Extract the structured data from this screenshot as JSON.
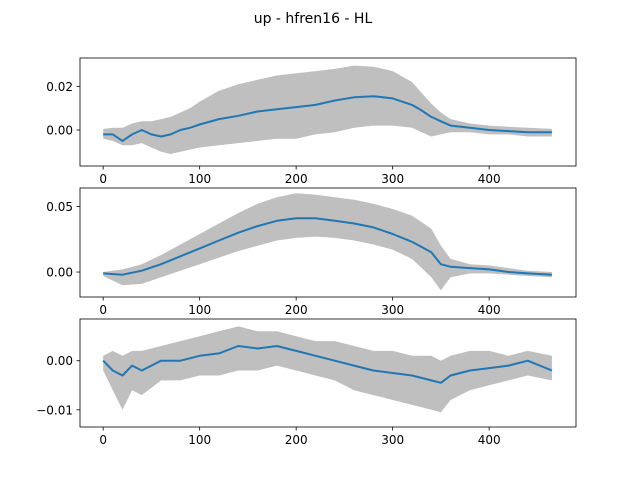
{
  "figure_title": "up - hfren16 - HL",
  "chart_data": [
    {
      "type": "line",
      "title": "",
      "xlabel": "",
      "ylabel": "",
      "xlim": [
        -24,
        490
      ],
      "ylim": [
        -0.0165,
        0.033
      ],
      "xticks": [
        0,
        100,
        200,
        300,
        400
      ],
      "xtick_labels": [
        "0",
        "100",
        "200",
        "300",
        "400"
      ],
      "yticks": [
        0.0,
        0.02
      ],
      "ytick_labels": [
        "0.00",
        "0.02"
      ],
      "grid": false,
      "series": [
        {
          "role": "mean line",
          "color": "#1f77b4",
          "x": [
            0,
            10,
            20,
            30,
            40,
            50,
            60,
            70,
            80,
            90,
            100,
            120,
            140,
            160,
            180,
            200,
            220,
            240,
            260,
            280,
            300,
            320,
            330,
            340,
            350,
            360,
            380,
            400,
            420,
            440,
            465
          ],
          "y": [
            -0.002,
            -0.002,
            -0.005,
            -0.002,
            0.0,
            -0.002,
            -0.003,
            -0.002,
            0.0,
            0.001,
            0.0025,
            0.005,
            0.0065,
            0.0085,
            0.0095,
            0.0105,
            0.0115,
            0.0135,
            0.015,
            0.0155,
            0.0145,
            0.0115,
            0.009,
            0.006,
            0.004,
            0.002,
            0.001,
            0.0,
            -0.0005,
            -0.001,
            -0.001
          ]
        },
        {
          "role": "uncertainty band",
          "color": "#bfbfbf",
          "x": [
            0,
            10,
            20,
            30,
            40,
            50,
            60,
            70,
            80,
            90,
            100,
            120,
            140,
            160,
            180,
            200,
            220,
            240,
            260,
            280,
            300,
            320,
            330,
            340,
            350,
            360,
            380,
            400,
            420,
            440,
            465
          ],
          "upper": [
            0.0005,
            0.001,
            0.001,
            0.003,
            0.004,
            0.004,
            0.005,
            0.006,
            0.008,
            0.01,
            0.013,
            0.018,
            0.021,
            0.023,
            0.025,
            0.026,
            0.027,
            0.028,
            0.0295,
            0.029,
            0.027,
            0.022,
            0.017,
            0.012,
            0.008,
            0.005,
            0.003,
            0.002,
            0.0015,
            0.001,
            0.0005
          ],
          "lower": [
            -0.004,
            -0.005,
            -0.007,
            -0.007,
            -0.006,
            -0.008,
            -0.01,
            -0.011,
            -0.01,
            -0.009,
            -0.008,
            -0.007,
            -0.006,
            -0.005,
            -0.004,
            -0.004,
            -0.002,
            -0.001,
            0.001,
            0.002,
            0.002,
            0.001,
            -0.001,
            -0.003,
            -0.002,
            -0.001,
            -0.001,
            -0.002,
            -0.002,
            -0.003,
            -0.003
          ]
        }
      ]
    },
    {
      "type": "line",
      "title": "",
      "xlabel": "",
      "ylabel": "",
      "xlim": [
        -24,
        490
      ],
      "ylim": [
        -0.019,
        0.064
      ],
      "xticks": [
        0,
        100,
        200,
        300,
        400
      ],
      "xtick_labels": [
        "0",
        "100",
        "200",
        "300",
        "400"
      ],
      "yticks": [
        0.0,
        0.05
      ],
      "ytick_labels": [
        "0.00",
        "0.05"
      ],
      "grid": false,
      "series": [
        {
          "role": "mean line",
          "color": "#1f77b4",
          "x": [
            0,
            20,
            40,
            60,
            80,
            100,
            120,
            140,
            160,
            180,
            200,
            220,
            240,
            260,
            280,
            300,
            320,
            340,
            350,
            360,
            380,
            400,
            420,
            440,
            465
          ],
          "y": [
            -0.001,
            -0.002,
            0.001,
            0.006,
            0.012,
            0.018,
            0.024,
            0.03,
            0.035,
            0.039,
            0.041,
            0.041,
            0.039,
            0.037,
            0.034,
            0.029,
            0.023,
            0.015,
            0.006,
            0.004,
            0.003,
            0.002,
            0.0,
            -0.001,
            -0.002
          ]
        },
        {
          "role": "uncertainty band",
          "color": "#bfbfbf",
          "x": [
            0,
            20,
            40,
            60,
            80,
            100,
            120,
            140,
            160,
            180,
            200,
            220,
            240,
            260,
            280,
            300,
            320,
            340,
            350,
            360,
            380,
            400,
            420,
            440,
            465
          ],
          "upper": [
            0.0,
            0.002,
            0.006,
            0.013,
            0.021,
            0.029,
            0.037,
            0.045,
            0.052,
            0.057,
            0.06,
            0.059,
            0.057,
            0.055,
            0.052,
            0.048,
            0.043,
            0.033,
            0.02,
            0.01,
            0.006,
            0.005,
            0.003,
            0.001,
            0.0
          ],
          "lower": [
            -0.003,
            -0.01,
            -0.009,
            -0.004,
            0.001,
            0.006,
            0.011,
            0.016,
            0.02,
            0.024,
            0.026,
            0.027,
            0.026,
            0.024,
            0.021,
            0.017,
            0.01,
            -0.004,
            -0.014,
            -0.004,
            -0.001,
            -0.001,
            -0.002,
            -0.003,
            -0.004
          ]
        }
      ]
    },
    {
      "type": "line",
      "title": "",
      "xlabel": "",
      "ylabel": "",
      "xlim": [
        -24,
        490
      ],
      "ylim": [
        -0.0135,
        0.0085
      ],
      "xticks": [
        0,
        100,
        200,
        300,
        400
      ],
      "xtick_labels": [
        "0",
        "100",
        "200",
        "300",
        "400"
      ],
      "yticks": [
        -0.01,
        0.0
      ],
      "ytick_labels": [
        "−0.01",
        "0.00"
      ],
      "grid": false,
      "series": [
        {
          "role": "mean line",
          "color": "#1f77b4",
          "x": [
            0,
            10,
            20,
            30,
            40,
            60,
            80,
            100,
            120,
            140,
            160,
            180,
            200,
            220,
            240,
            260,
            280,
            300,
            320,
            340,
            350,
            360,
            380,
            400,
            420,
            440,
            465
          ],
          "y": [
            0.0,
            -0.002,
            -0.003,
            -0.001,
            -0.002,
            0.0,
            0.0,
            0.001,
            0.0015,
            0.003,
            0.0025,
            0.003,
            0.002,
            0.001,
            0.0,
            -0.001,
            -0.002,
            -0.0025,
            -0.003,
            -0.004,
            -0.0045,
            -0.003,
            -0.002,
            -0.0015,
            -0.001,
            0.0,
            -0.002
          ]
        },
        {
          "role": "uncertainty band",
          "color": "#bfbfbf",
          "x": [
            0,
            10,
            20,
            30,
            40,
            60,
            80,
            100,
            120,
            140,
            160,
            180,
            200,
            220,
            240,
            260,
            280,
            300,
            320,
            340,
            350,
            360,
            380,
            400,
            420,
            440,
            465
          ],
          "upper": [
            0.001,
            0.002,
            0.001,
            0.002,
            0.002,
            0.003,
            0.004,
            0.005,
            0.006,
            0.007,
            0.006,
            0.006,
            0.005,
            0.004,
            0.004,
            0.003,
            0.002,
            0.002,
            0.001,
            0.001,
            0.0,
            0.001,
            0.002,
            0.002,
            0.001,
            0.002,
            0.001
          ],
          "lower": [
            -0.002,
            -0.006,
            -0.01,
            -0.006,
            -0.007,
            -0.004,
            -0.004,
            -0.003,
            -0.003,
            -0.002,
            -0.002,
            -0.001,
            -0.002,
            -0.003,
            -0.004,
            -0.006,
            -0.007,
            -0.008,
            -0.009,
            -0.01,
            -0.0105,
            -0.008,
            -0.006,
            -0.005,
            -0.004,
            -0.003,
            -0.004
          ]
        }
      ]
    }
  ]
}
